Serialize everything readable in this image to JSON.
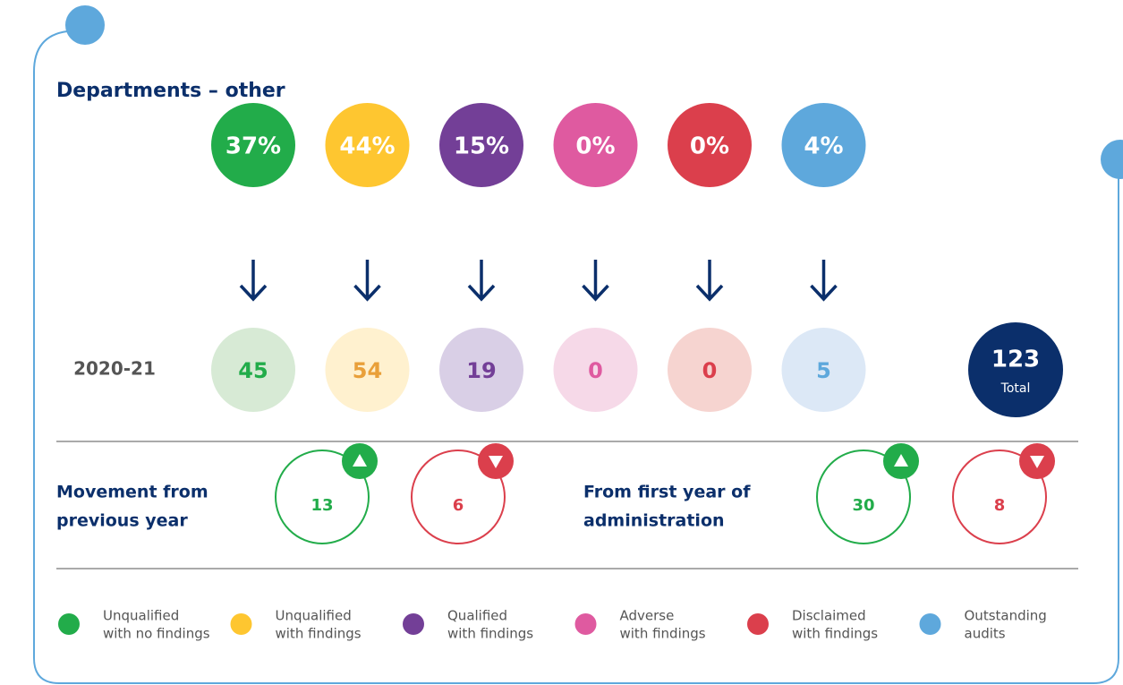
{
  "title": "Departments – other",
  "year": "2020-21",
  "categories": [
    {
      "percent": "37%",
      "count": "45",
      "color": "#22ac4a",
      "light": "#d7ead5",
      "text_color": "#22ac4a",
      "legend": [
        "Unqualified",
        "with no findings"
      ]
    },
    {
      "percent": "44%",
      "count": "54",
      "color": "#fec630",
      "light": "#fff1cf",
      "text_color": "#e9a03a",
      "legend": [
        "Unqualified",
        "with findings"
      ]
    },
    {
      "percent": "15%",
      "count": "19",
      "color": "#733f97",
      "light": "#d9cfe6",
      "text_color": "#733f97",
      "legend": [
        "Qualified",
        "with findings"
      ]
    },
    {
      "percent": "0%",
      "count": "0",
      "color": "#df5aa0",
      "light": "#f6d9e8",
      "text_color": "#df5aa0",
      "legend": [
        "Adverse",
        "with findings"
      ]
    },
    {
      "percent": "0%",
      "count": "0",
      "color": "#db3f4c",
      "light": "#f6d4d0",
      "text_color": "#db3f4c",
      "legend": [
        "Disclaimed",
        "with findings"
      ]
    },
    {
      "percent": "4%",
      "count": "5",
      "color": "#5ea8dc",
      "light": "#dce8f6",
      "text_color": "#5ea8dc",
      "legend": [
        "Outstanding",
        "audits"
      ]
    }
  ],
  "total": {
    "value": "123",
    "label": "Total"
  },
  "movements": [
    {
      "label": [
        "Movement from",
        "previous year"
      ],
      "up": "13",
      "down": "6"
    },
    {
      "label": [
        "From first year of",
        "administration"
      ],
      "up": "30",
      "down": "8"
    }
  ]
}
